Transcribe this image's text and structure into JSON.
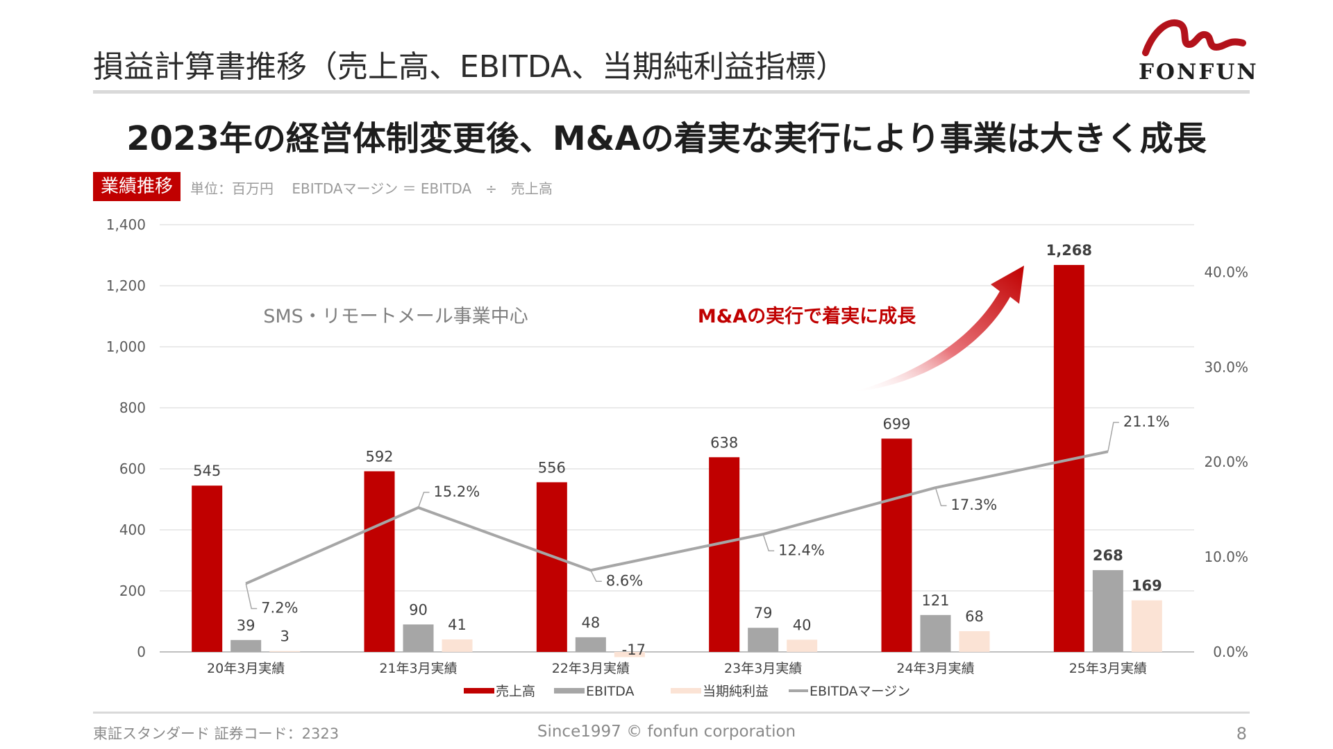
{
  "page": {
    "title": "損益計算書推移（売上高、EBITDA、当期純利益指標）",
    "headline": "2023年の経営体制変更後、M&Aの着実な実行により事業は大きく成長",
    "section_tag": "業績推移",
    "unit_note": "単位：百万円　 EBITDAマージン ＝ EBITDA　÷　売上高",
    "logo_text": "FONFUN",
    "footer_left": "東証スタンダード 証券コード：2323",
    "footer_center": "Since1997 © fonfun corporation",
    "page_number": "8"
  },
  "colors": {
    "revenue": "#c00000",
    "ebitda": "#a6a6a6",
    "net_income": "#fbe3d5",
    "margin": "#a6a6a6",
    "accent": "#c00000"
  },
  "chart_data": {
    "type": "bar",
    "categories": [
      "20年3月実績",
      "21年3月実績",
      "22年3月実績",
      "23年3月実績",
      "24年3月実績",
      "25年3月実績"
    ],
    "series": [
      {
        "name": "売上高",
        "kind": "bar",
        "axis": "left",
        "values": [
          545,
          592,
          556,
          638,
          699,
          1268
        ],
        "labels": [
          "545",
          "592",
          "556",
          "638",
          "699",
          "1,268"
        ]
      },
      {
        "name": "EBITDA",
        "kind": "bar",
        "axis": "left",
        "values": [
          39,
          90,
          48,
          79,
          121,
          268
        ],
        "labels": [
          "39",
          "90",
          "48",
          "79",
          "121",
          "268"
        ]
      },
      {
        "name": "当期純利益",
        "kind": "bar",
        "axis": "left",
        "values": [
          3,
          41,
          -17,
          40,
          68,
          169
        ],
        "labels": [
          "3",
          "41",
          "-17",
          "40",
          "68",
          "169"
        ]
      },
      {
        "name": "EBITDAマージン",
        "kind": "line",
        "axis": "right",
        "values": [
          7.2,
          15.2,
          8.6,
          12.4,
          17.3,
          21.1
        ],
        "labels": [
          "7.2%",
          "15.2%",
          "8.6%",
          "12.4%",
          "17.3%",
          "21.1%"
        ]
      }
    ],
    "y_left": {
      "min": 0,
      "max": 1400,
      "ticks": [
        "0",
        "200",
        "400",
        "600",
        "800",
        "1,000",
        "1,200",
        "1,400"
      ]
    },
    "y_right": {
      "min": 0,
      "max": 45,
      "ticks": [
        "0.0%",
        "10.0%",
        "20.0%",
        "30.0%",
        "40.0%"
      ]
    },
    "annotations": {
      "left_note": "SMS・リモートメール事業中心",
      "growth_note": "M&Aの実行で着実に成長"
    },
    "legend": [
      "売上高",
      "EBITDA",
      "当期純利益",
      "EBITDAマージン"
    ],
    "legend_position": "bottom",
    "grid": true
  }
}
